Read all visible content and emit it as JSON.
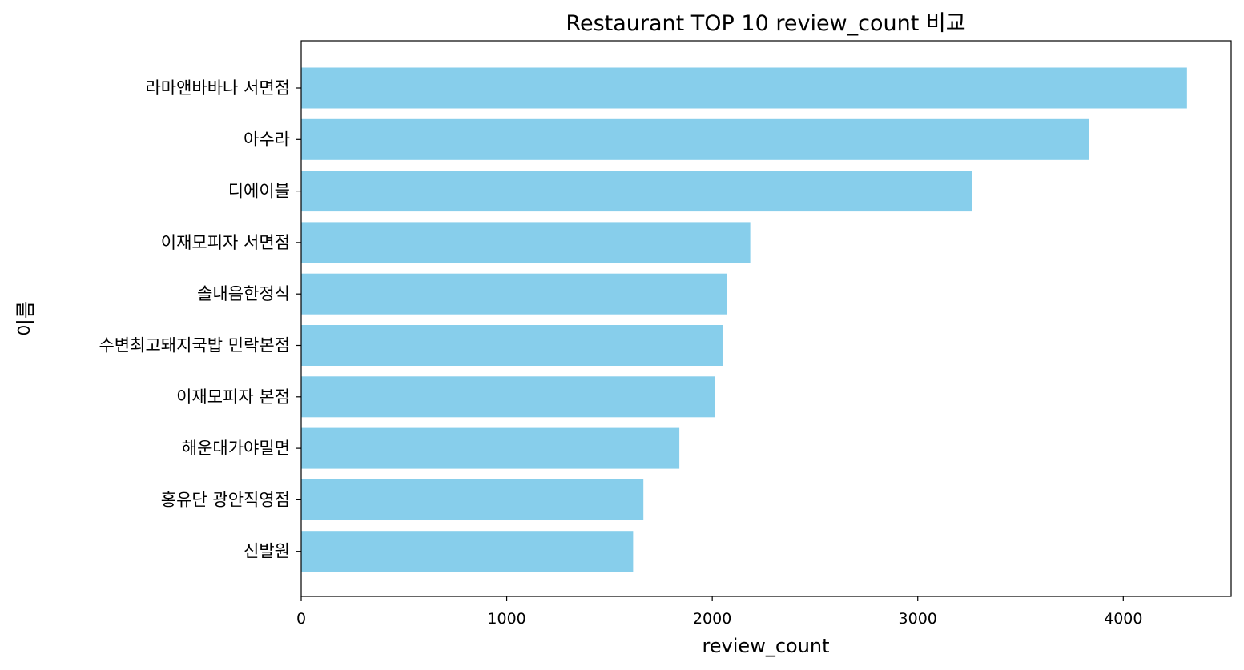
{
  "chart_data": {
    "type": "bar",
    "orientation": "horizontal",
    "title": "Restaurant TOP 10 review_count 비교",
    "xlabel": "review_count",
    "ylabel": "이름",
    "categories": [
      "라마앤바바나 서면점",
      "아수라",
      "디에이블",
      "이재모피자 서면점",
      "솔내음한정식",
      "수변최고돼지국밥 민락본점",
      "이재모피자 본점",
      "해운대가야밀면",
      "홍유단 광안직영점",
      "신발원"
    ],
    "values": [
      4310,
      3835,
      3265,
      2185,
      2070,
      2050,
      2015,
      1840,
      1665,
      1615
    ],
    "xlim": [
      0,
      4525
    ],
    "xticks": [
      0,
      1000,
      2000,
      3000,
      4000
    ],
    "xtick_labels": [
      "0",
      "1000",
      "2000",
      "3000",
      "4000"
    ],
    "bar_color": "#87ceeb",
    "grid": false,
    "legend": "none"
  }
}
